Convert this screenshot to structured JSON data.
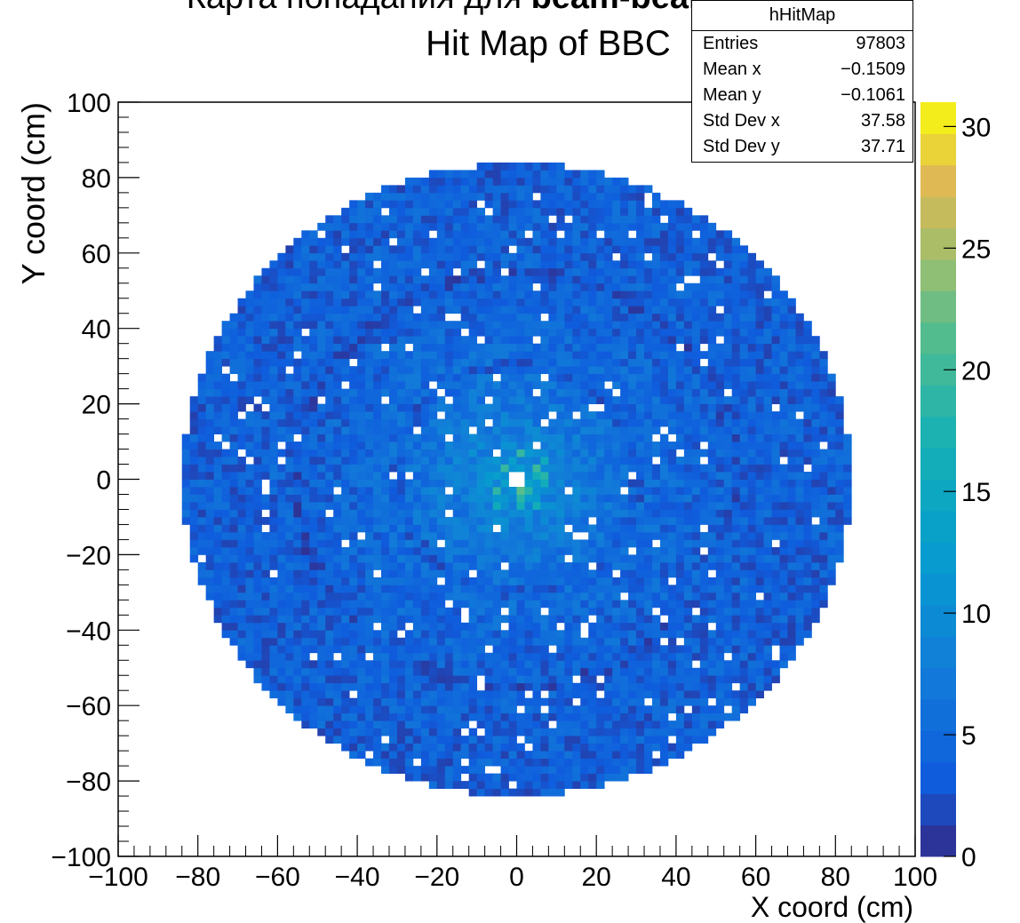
{
  "header": {
    "text_plain": "Карта попадания для ",
    "text_bold": "beam-beam событ"
  },
  "chart_data": {
    "type": "heatmap",
    "title": "Hit Map of BBC",
    "xlabel": "X coord (cm)",
    "ylabel": "Y coord (cm)",
    "xlim": [
      -100,
      100
    ],
    "ylim": [
      -100,
      100
    ],
    "x_ticks": [
      "−100",
      "−80",
      "−60",
      "−40",
      "−20",
      "0",
      "20",
      "40",
      "60",
      "80",
      "100"
    ],
    "y_ticks": [
      "−100",
      "−80",
      "−60",
      "−40",
      "−20",
      "0",
      "20",
      "40",
      "60",
      "80",
      "100"
    ],
    "zlim": [
      0,
      31
    ],
    "z_ticks": [
      "0",
      "5",
      "10",
      "15",
      "20",
      "25",
      "30"
    ],
    "colormap": "parula",
    "outer_radius_cm": 84,
    "hole_radius_cm": 3,
    "stats": {
      "name": "hHitMap",
      "rows": [
        {
          "label": "Entries",
          "value": "97803"
        },
        {
          "label": "Mean x",
          "value": "−0.1509"
        },
        {
          "label": "Mean y",
          "value": "−0.1061"
        },
        {
          "label": "Std Dev x",
          "value": "37.58"
        },
        {
          "label": "Std Dev y",
          "value": "37.71"
        }
      ]
    }
  }
}
